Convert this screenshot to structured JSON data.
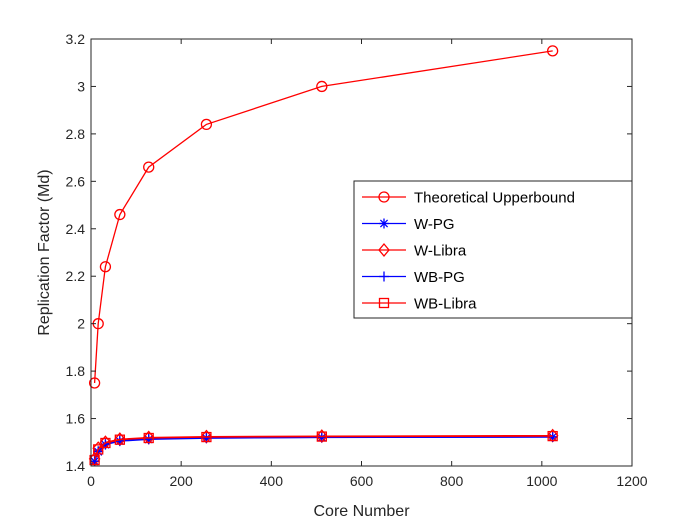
{
  "chart_data": {
    "type": "line",
    "title": "",
    "xlabel": "Core Number",
    "ylabel": "Replication Factor (Md)",
    "xlim": [
      0,
      1200
    ],
    "ylim": [
      1.4,
      3.2
    ],
    "xticks": [
      0,
      200,
      400,
      600,
      800,
      1000,
      1200
    ],
    "xtick_labels": [
      "0",
      "200",
      "400",
      "600",
      "800",
      "1000",
      "1200"
    ],
    "yticks": [
      1.4,
      1.6,
      1.8,
      2.0,
      2.2,
      2.4,
      2.6,
      2.8,
      3.0,
      3.2
    ],
    "ytick_labels": [
      "1.4",
      "1.6",
      "1.8",
      "2",
      "2.2",
      "2.4",
      "2.6",
      "2.8",
      "3",
      "3.2"
    ],
    "grid": false,
    "legend_position": "center-right",
    "x": [
      8,
      16,
      32,
      64,
      128,
      256,
      512,
      1024
    ],
    "series": [
      {
        "name": "Theoretical Upperbound",
        "color": "#ff0000",
        "marker": "circle",
        "values": [
          1.75,
          2.0,
          2.24,
          2.46,
          2.66,
          2.84,
          3.0,
          3.15
        ]
      },
      {
        "name": "W-PG",
        "color": "#0000ff",
        "marker": "star",
        "values": [
          1.42,
          1.46,
          1.49,
          1.505,
          1.512,
          1.517,
          1.52,
          1.522
        ]
      },
      {
        "name": "W-Libra",
        "color": "#ff0000",
        "marker": "diamond",
        "values": [
          1.43,
          1.475,
          1.5,
          1.513,
          1.52,
          1.524,
          1.526,
          1.528
        ]
      },
      {
        "name": "WB-PG",
        "color": "#0000ff",
        "marker": "plus",
        "values": [
          1.42,
          1.462,
          1.492,
          1.507,
          1.514,
          1.519,
          1.521,
          1.523
        ]
      },
      {
        "name": "WB-Libra",
        "color": "#ff0000",
        "marker": "square",
        "values": [
          1.425,
          1.47,
          1.497,
          1.511,
          1.518,
          1.522,
          1.524,
          1.526
        ]
      }
    ]
  }
}
